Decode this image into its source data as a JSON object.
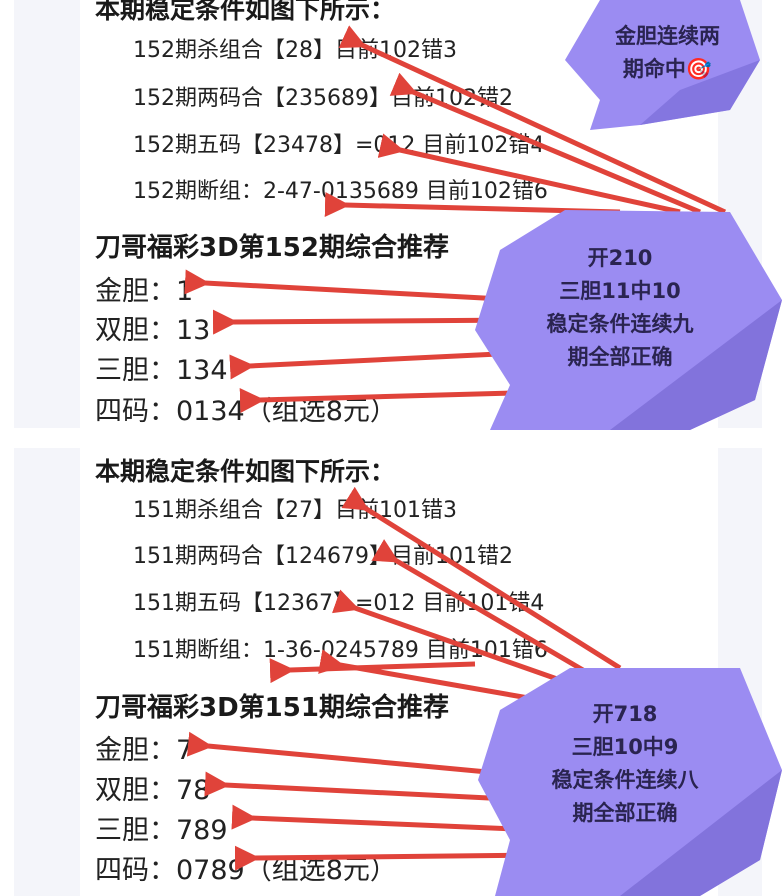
{
  "blocks": [
    {
      "heading": "本期稳定条件如图下所示：",
      "conditions": [
        "152期杀组合【28】目前102错3",
        "152期两码合【235689】目前102错2",
        "152期五码【23478】=012  目前102错4",
        "152期断组：2-47-0135689 目前102错6"
      ],
      "title": "刀哥福彩3D第152期综合推荐",
      "recommendations": [
        "金胆：1",
        "双胆：13",
        "三胆：134",
        "四码：0134（组选8元）"
      ],
      "bubble_small": [
        "金胆连续两",
        "期命中🎯"
      ],
      "bubble": [
        "开210",
        "三胆11中10",
        "稳定条件连续九",
        "期全部正确"
      ]
    },
    {
      "heading": "本期稳定条件如图下所示：",
      "conditions": [
        "151期杀组合【27】目前101错3",
        "151期两码合【124679】目前101错2",
        "151期五码【12367】=012  目前101错4",
        "151期断组：1-36-0245789 目前101错6"
      ],
      "title": "刀哥福彩3D第151期综合推荐",
      "recommendations": [
        "金胆：7",
        "双胆：78",
        "三胆：789",
        "四码：0789（组选8元）"
      ],
      "bubble": [
        "开718",
        "三胆10中9",
        "稳定条件连续八",
        "期全部正确"
      ]
    }
  ],
  "colors": {
    "bubble": "#9b8cf2",
    "arrow": "#e0433a",
    "card_bg": "#f4f5fa"
  }
}
